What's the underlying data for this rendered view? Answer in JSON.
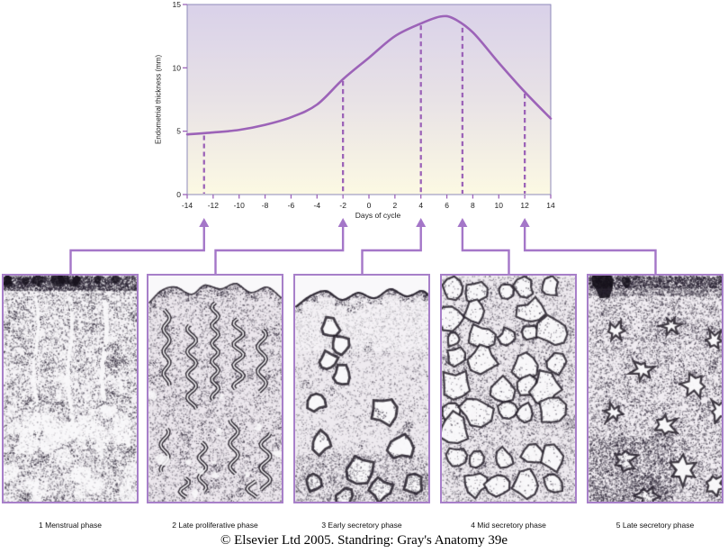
{
  "figure": {
    "copyright": "© Elsevier Ltd 2005. Standring: Gray's Anatomy 39e"
  },
  "chart_data": {
    "type": "line",
    "title": "",
    "xlabel": "Days of cycle",
    "ylabel": "Endometrial thickness (mm)",
    "xlim": [
      -14,
      14
    ],
    "ylim": [
      0,
      15
    ],
    "xticks": [
      -14,
      -12,
      -10,
      -8,
      -6,
      -4,
      -2,
      0,
      2,
      4,
      6,
      8,
      10,
      12,
      14
    ],
    "yticks": [
      0,
      5,
      10,
      15
    ],
    "grid": false,
    "legend": "none",
    "series": [
      {
        "name": "Endometrial thickness",
        "points": [
          [
            -14,
            4.75
          ],
          [
            -12,
            4.9
          ],
          [
            -10,
            5.1
          ],
          [
            -8,
            5.5
          ],
          [
            -6,
            6.1
          ],
          [
            -4,
            7.1
          ],
          [
            -2,
            9.1
          ],
          [
            0,
            10.8
          ],
          [
            2,
            12.5
          ],
          [
            4,
            13.5
          ],
          [
            5.5,
            14.05
          ],
          [
            6.5,
            13.9
          ],
          [
            8,
            12.8
          ],
          [
            10,
            10.4
          ],
          [
            12,
            8.1
          ],
          [
            14,
            6.0
          ]
        ]
      }
    ],
    "markers": [
      {
        "x": -12.7,
        "y": 4.8,
        "phase": "1 Menstrual phase"
      },
      {
        "x": -2,
        "y": 9.1,
        "phase": "2 Late proliferative phase"
      },
      {
        "x": 4,
        "y": 13.5,
        "phase": "3 Early secretory phase"
      },
      {
        "x": 7.2,
        "y": 13.3,
        "phase": "4 Mid secretory phase"
      },
      {
        "x": 12,
        "y": 8.1,
        "phase": "5 Late secretory phase"
      }
    ]
  },
  "panels": [
    {
      "label": "1 Menstrual phase",
      "phase": "menstrual"
    },
    {
      "label": "2 Late proliferative phase",
      "phase": "late-proliferative"
    },
    {
      "label": "3 Early secretory phase",
      "phase": "early-secretory"
    },
    {
      "label": "4 Mid secretory phase",
      "phase": "mid-secretory"
    },
    {
      "label": "5 Late secretory phase",
      "phase": "late-secretory"
    }
  ],
  "colors": {
    "curve": "#9c63b8",
    "plot_border": "#8e89ba",
    "plot_bg_top": "#d9d1e9",
    "plot_bg_mid": "#e8e2e6",
    "plot_bg_bottom": "#fcf9e3",
    "connector": "#a476c8",
    "panel_border": "#a77fc9",
    "text": "#1a1a1a"
  }
}
